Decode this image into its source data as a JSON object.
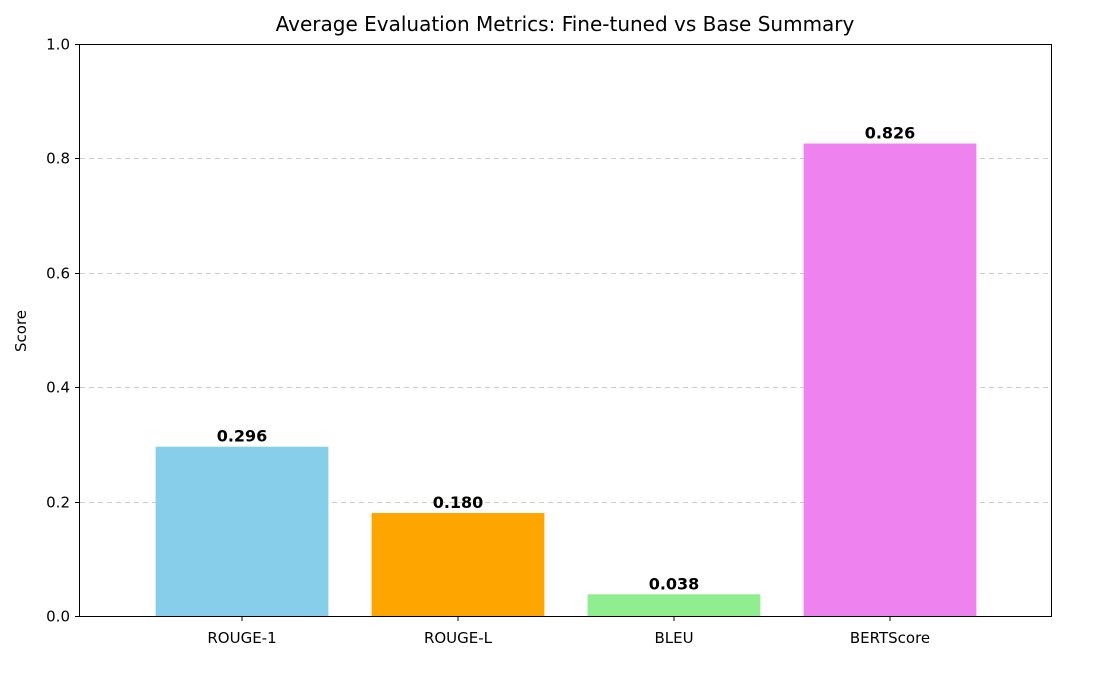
{
  "chart_data": {
    "type": "bar",
    "title": "Average Evaluation Metrics: Fine-tuned vs Base Summary",
    "xlabel": "",
    "ylabel": "Score",
    "categories": [
      "ROUGE-1",
      "ROUGE-L",
      "BLEU",
      "BERTScore"
    ],
    "values": [
      0.296,
      0.18,
      0.038,
      0.826
    ],
    "value_labels": [
      "0.296",
      "0.180",
      "0.038",
      "0.826"
    ],
    "colors": [
      "#87ceeb",
      "#ffa500",
      "#90ee90",
      "#ee82ee"
    ],
    "ylim": [
      0,
      1.0
    ],
    "yticks": [
      0.0,
      0.2,
      0.4,
      0.6,
      0.8,
      1.0
    ],
    "ytick_labels": [
      "0.0",
      "0.2",
      "0.4",
      "0.6",
      "0.8",
      "1.0"
    ],
    "grid": "y-axis dashed",
    "legend": "none"
  }
}
